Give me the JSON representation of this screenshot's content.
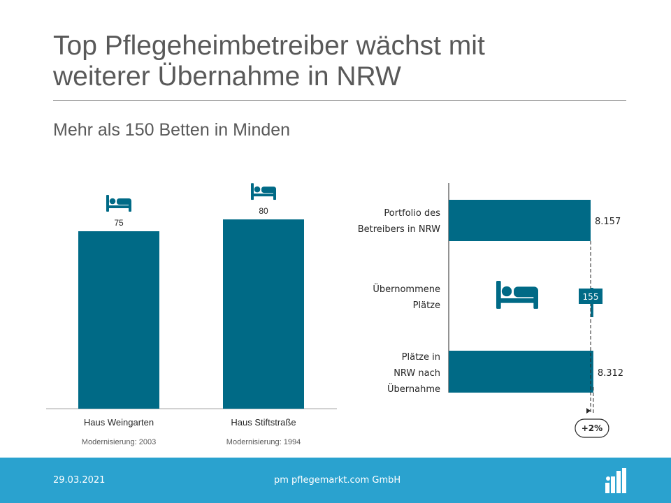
{
  "header": {
    "title_line1": "Top Pflegeheimbetreiber wächst mit",
    "title_line2": "weiterer Übernahme in NRW",
    "subtitle": "Mehr als 150 Betten in Minden"
  },
  "chart_data": [
    {
      "type": "bar",
      "categories": [
        "Haus Weingarten",
        "Haus Stiftstraße"
      ],
      "values": [
        75,
        80
      ],
      "value_labels": [
        "75",
        "80"
      ],
      "notes": [
        "Modernisierung:  2003",
        "Modernisierung:  1994"
      ],
      "icon": "bed-icon",
      "color": "#006a86"
    },
    {
      "type": "bar",
      "orientation": "horizontal",
      "categories": [
        [
          "Portfolio des",
          "Betreibers in NRW"
        ],
        [
          "Übernommene",
          "Plätze"
        ],
        [
          "Plätze in",
          "NRW nach",
          "Übernahme"
        ]
      ],
      "values": [
        8157,
        155,
        8312
      ],
      "value_labels": [
        "8.157",
        "155",
        "8.312"
      ],
      "waterfall": true,
      "annotation": "+2%",
      "icon": "bed-icon",
      "color": "#006a86"
    }
  ],
  "footer": {
    "date": "29.03.2021",
    "company": "pm pflegemarkt.com GmbH",
    "logo_icon": "pflegemarkt-logo-icon"
  }
}
